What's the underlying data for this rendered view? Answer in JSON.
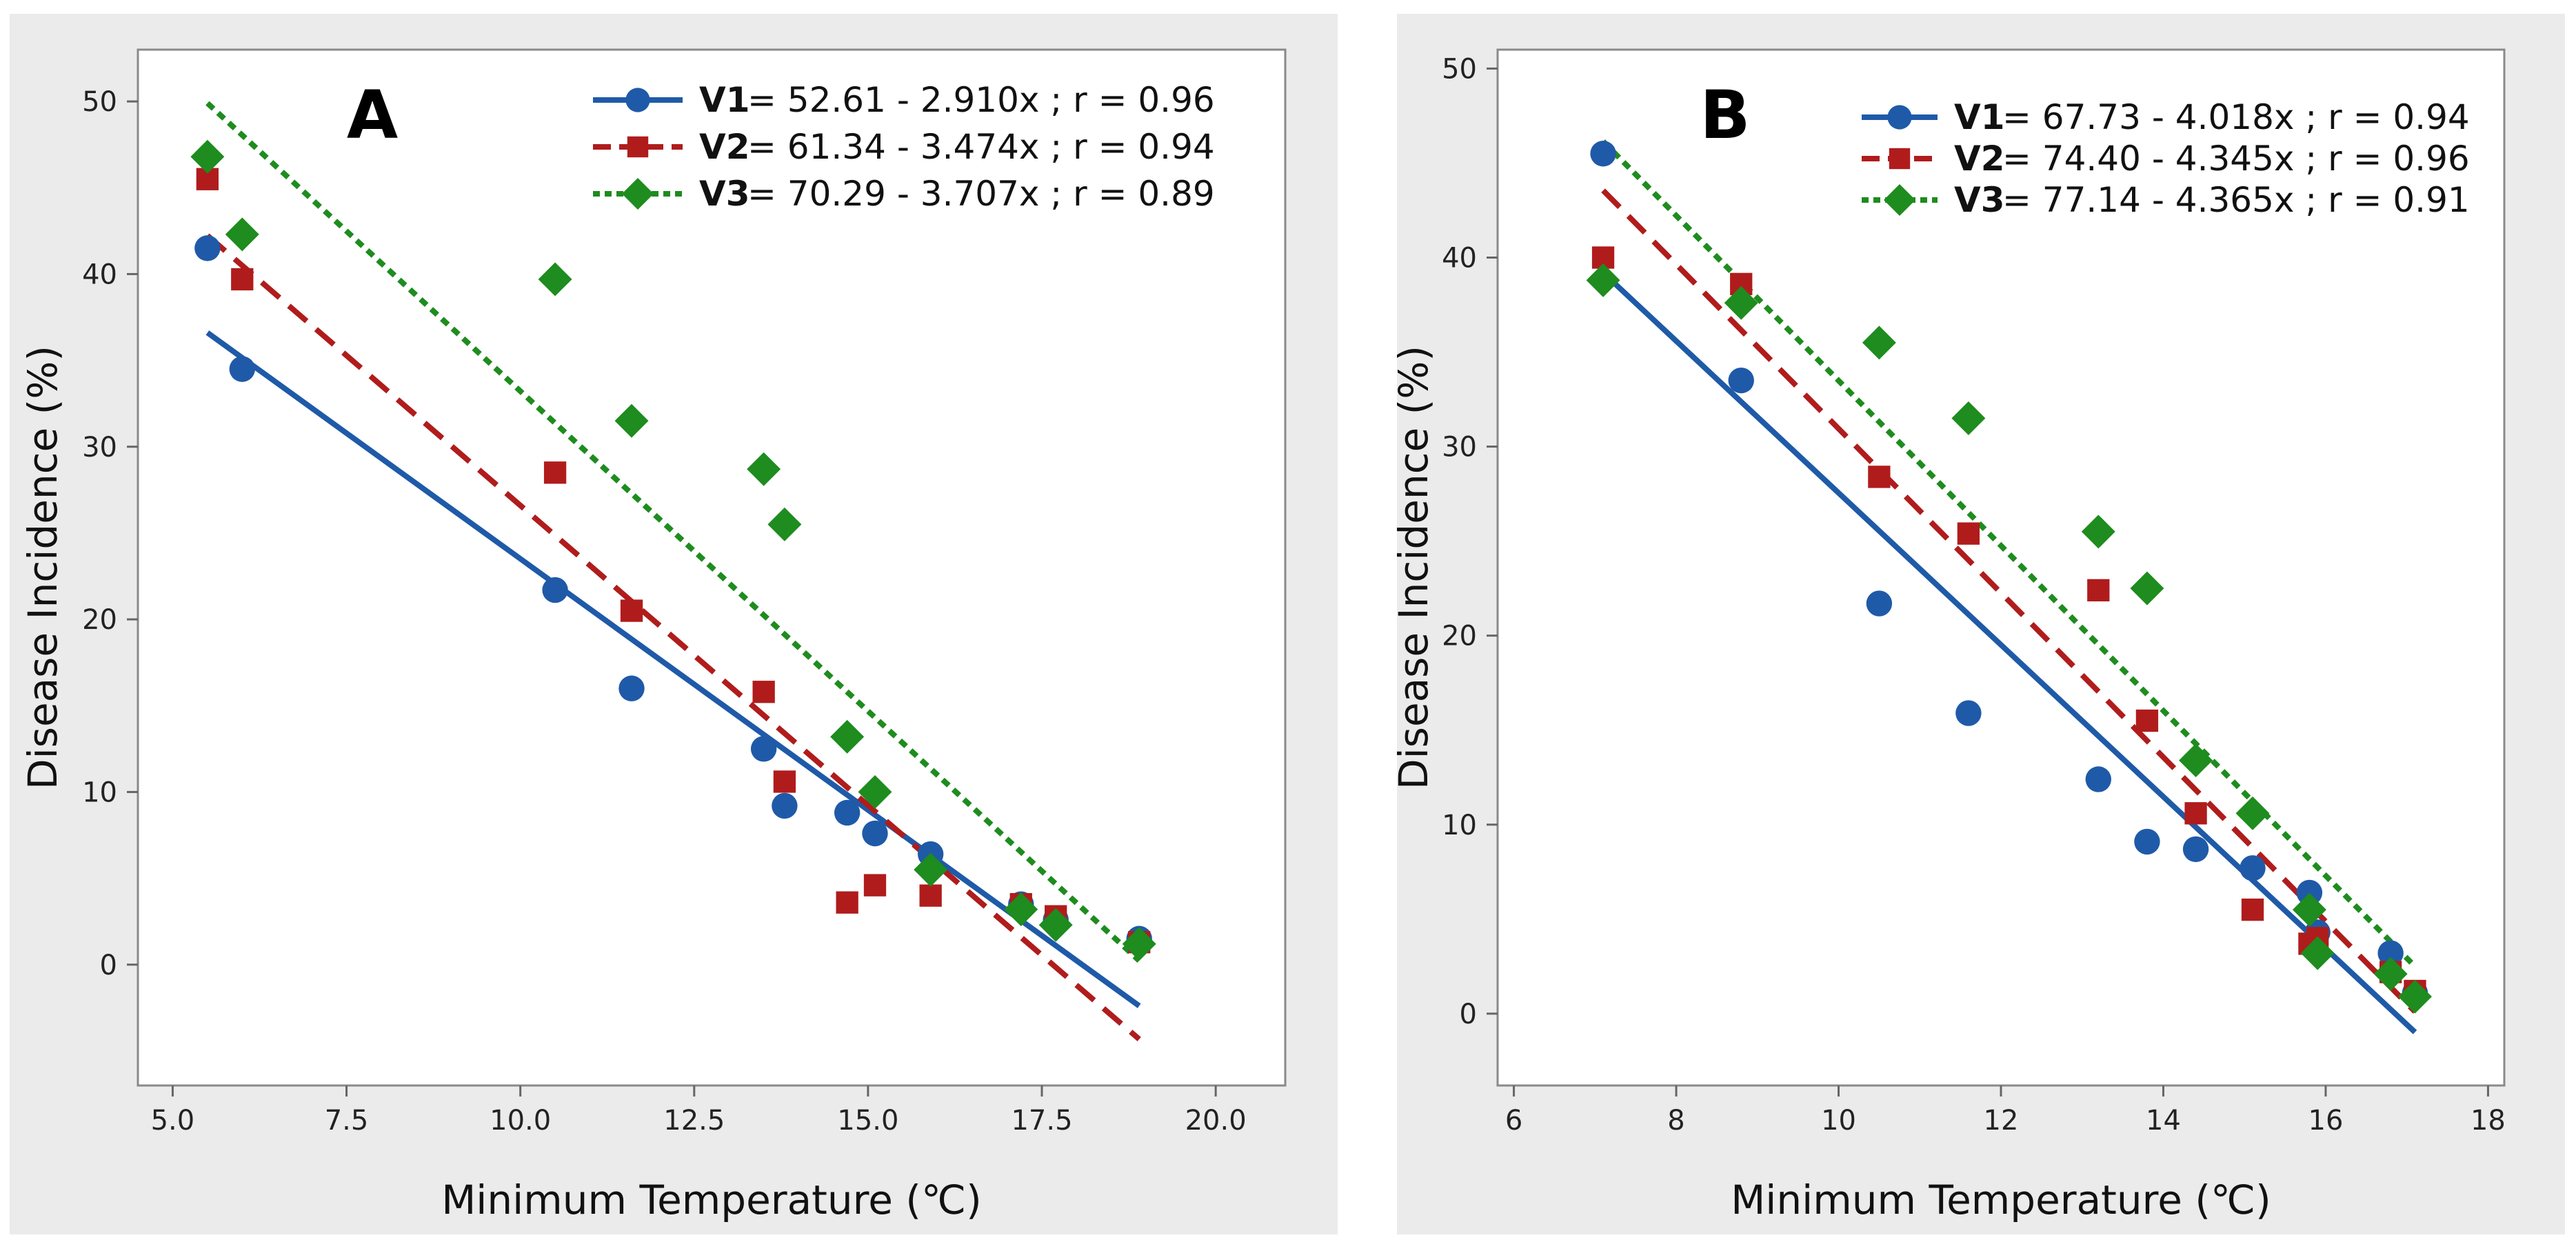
{
  "chart_data": [
    {
      "type": "scatter",
      "panel_label": "A",
      "xlabel": "Minimum Temperature (℃)",
      "ylabel": "Disease Incidence (%)",
      "xlim": [
        4.5,
        21.0
      ],
      "ylim": [
        -7,
        53
      ],
      "xticks": [
        5.0,
        7.5,
        10.0,
        12.5,
        15.0,
        17.5,
        20.0
      ],
      "xtick_labels": [
        "5.0",
        "7.5",
        "10.0",
        "12.5",
        "15.0",
        "17.5",
        "20.0"
      ],
      "yticks": [
        0,
        10,
        20,
        30,
        40,
        50
      ],
      "ytick_labels": [
        "0",
        "10",
        "20",
        "30",
        "40",
        "50"
      ],
      "legend_position": "top-right",
      "series": [
        {
          "name": "V1",
          "equation": "= 52.61 - 2.910x ; r = 0.96",
          "color": "#1f5aa8",
          "marker": "circle",
          "line_style": "solid",
          "fit": {
            "intercept": 52.61,
            "slope": -2.91,
            "x_range": [
              5.5,
              18.9
            ]
          },
          "x": [
            5.5,
            6.0,
            10.5,
            11.6,
            13.5,
            13.8,
            14.7,
            15.1,
            15.9,
            17.2,
            17.7,
            18.9
          ],
          "y": [
            41.5,
            34.5,
            21.7,
            16.0,
            12.5,
            9.2,
            8.8,
            7.6,
            6.4,
            3.5,
            2.6,
            1.5
          ]
        },
        {
          "name": "V2",
          "equation": "= 61.34 - 3.474x ; r = 0.94",
          "color": "#b01c1c",
          "marker": "square",
          "line_style": "dashed",
          "fit": {
            "intercept": 61.34,
            "slope": -3.474,
            "x_range": [
              5.5,
              18.9
            ]
          },
          "x": [
            5.5,
            6.0,
            10.5,
            11.6,
            13.5,
            13.8,
            14.7,
            15.1,
            15.9,
            17.2,
            17.7,
            18.9
          ],
          "y": [
            45.5,
            39.7,
            28.5,
            20.5,
            15.8,
            10.6,
            3.6,
            4.6,
            4.0,
            3.5,
            2.8,
            1.3
          ]
        },
        {
          "name": "V3",
          "equation": "= 70.29 - 3.707x ; r = 0.89",
          "color": "#1e8c1e",
          "marker": "diamond",
          "line_style": "dotted",
          "fit": {
            "intercept": 70.29,
            "slope": -3.707,
            "x_range": [
              5.5,
              18.9
            ]
          },
          "x": [
            5.5,
            6.0,
            10.5,
            11.6,
            13.5,
            13.8,
            14.7,
            15.1,
            15.9,
            17.2,
            17.7,
            18.9
          ],
          "y": [
            46.8,
            42.3,
            39.7,
            31.5,
            28.7,
            25.5,
            13.2,
            10.0,
            5.5,
            3.2,
            2.3,
            1.2
          ]
        }
      ]
    },
    {
      "type": "scatter",
      "panel_label": "B",
      "xlabel": "Minimum Temperature (℃)",
      "ylabel": "Disease Incidence (%)",
      "xlim": [
        5.8,
        18.2
      ],
      "ylim": [
        -3.8,
        51
      ],
      "xticks": [
        6,
        8,
        10,
        12,
        14,
        16,
        18
      ],
      "xtick_labels": [
        "6",
        "8",
        "10",
        "12",
        "14",
        "16",
        "18"
      ],
      "yticks": [
        0,
        10,
        20,
        30,
        40,
        50
      ],
      "ytick_labels": [
        "0",
        "10",
        "20",
        "30",
        "40",
        "50"
      ],
      "legend_position": "top-right",
      "series": [
        {
          "name": "V1",
          "equation": "= 67.73 - 4.018x ; r = 0.94",
          "color": "#1f5aa8",
          "marker": "circle",
          "line_style": "solid",
          "fit": {
            "intercept": 67.73,
            "slope": -4.018,
            "x_range": [
              7.1,
              17.1
            ]
          },
          "x": [
            7.1,
            8.8,
            10.5,
            11.6,
            13.2,
            13.8,
            14.4,
            15.1,
            15.8,
            15.9,
            16.8,
            17.1
          ],
          "y": [
            45.5,
            33.5,
            21.7,
            15.9,
            12.4,
            9.1,
            8.7,
            7.7,
            6.4,
            4.3,
            3.2,
            1.1
          ]
        },
        {
          "name": "V2",
          "equation": "= 74.40 - 4.345x ; r = 0.96",
          "color": "#b01c1c",
          "marker": "square",
          "line_style": "dashed",
          "fit": {
            "intercept": 74.4,
            "slope": -4.345,
            "x_range": [
              7.1,
              17.1
            ]
          },
          "x": [
            7.1,
            8.8,
            10.5,
            11.6,
            13.2,
            13.8,
            14.4,
            15.1,
            15.8,
            15.9,
            16.8,
            17.1
          ],
          "y": [
            40.0,
            38.6,
            28.4,
            25.4,
            22.4,
            15.5,
            10.6,
            5.5,
            3.7,
            4.0,
            2.2,
            1.2
          ]
        },
        {
          "name": "V3",
          "equation": "= 77.14 - 4.365x ; r = 0.91",
          "color": "#1e8c1e",
          "marker": "diamond",
          "line_style": "dotted",
          "fit": {
            "intercept": 77.14,
            "slope": -4.365,
            "x_range": [
              7.1,
              17.1
            ]
          },
          "x": [
            7.1,
            8.8,
            10.5,
            11.6,
            13.2,
            13.8,
            14.4,
            15.1,
            15.8,
            15.9,
            16.8,
            17.1
          ],
          "y": [
            38.8,
            37.6,
            35.5,
            31.5,
            25.5,
            22.5,
            13.4,
            10.6,
            5.5,
            3.2,
            2.1,
            0.9
          ]
        }
      ]
    }
  ]
}
